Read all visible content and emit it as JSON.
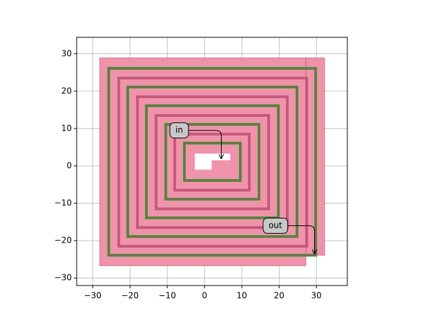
{
  "chart_data": {
    "type": "layout",
    "xlim": [
      -34.3,
      38.3
    ],
    "ylim": [
      -32.0,
      34.4
    ],
    "xticks": [
      {
        "value": -30,
        "label": "−30"
      },
      {
        "value": -20,
        "label": "−20"
      },
      {
        "value": -10,
        "label": "−10"
      },
      0,
      10,
      20,
      30
    ],
    "yticks": [
      {
        "value": -30,
        "label": "−30"
      },
      {
        "value": -20,
        "label": "−20"
      },
      {
        "value": -10,
        "label": "−10"
      },
      0,
      10,
      20,
      30
    ],
    "grid": true,
    "fill_color": "#ef93ab",
    "ring_color": "#b8456c",
    "green_color": "#2ca02c",
    "hole_color": "#ffffff",
    "fill_rects": [
      [
        -28.1,
        27.2,
        -26.7,
        28.9
      ],
      [
        27.2,
        32.2,
        -23.9,
        28.9
      ]
    ],
    "pink_rings": [
      [
        -23.0,
        27.4,
        -21.5,
        23.5
      ],
      [
        -18.0,
        22.2,
        -16.5,
        18.5
      ],
      [
        -13.0,
        17.2,
        -11.5,
        13.5
      ],
      [
        -8.0,
        12.0,
        -6.5,
        8.5
      ]
    ],
    "green_rings": [
      [
        -25.7,
        29.8,
        -23.9,
        26.1
      ],
      [
        -20.6,
        24.8,
        -18.9,
        21.1
      ],
      [
        -15.6,
        19.8,
        -13.9,
        16.1
      ],
      [
        -10.4,
        14.6,
        -8.9,
        11.1
      ],
      [
        -5.4,
        9.6,
        -3.9,
        6.1
      ]
    ],
    "hole_rects": [
      [
        -2.6,
        1.9,
        -1.0,
        3.3
      ],
      [
        1.9,
        6.9,
        1.5,
        3.3
      ]
    ],
    "annotations": [
      {
        "text": "in",
        "xy": [
          4.5,
          2
        ],
        "xytext": [
          -6.8,
          9.5
        ]
      },
      {
        "text": "out",
        "xy": [
          29.5,
          -23.5
        ],
        "xytext": [
          19,
          -16
        ]
      }
    ]
  }
}
